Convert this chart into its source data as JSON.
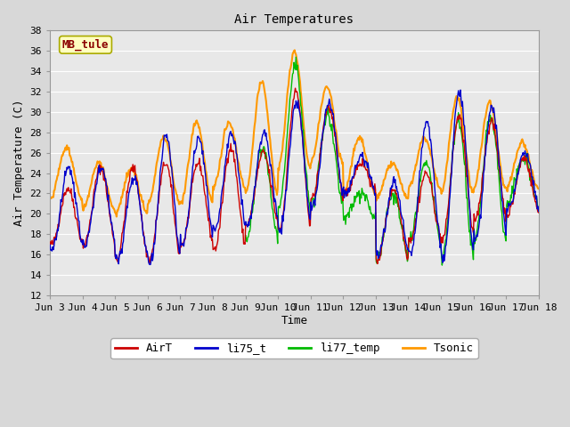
{
  "title": "Air Temperatures",
  "xlabel": "Time",
  "ylabel": "Air Temperature (C)",
  "ylim": [
    12,
    38
  ],
  "yticks": [
    12,
    14,
    16,
    18,
    20,
    22,
    24,
    26,
    28,
    30,
    32,
    34,
    36,
    38
  ],
  "annotation_text": "MB_tule",
  "annotation_color": "#8b0000",
  "annotation_bg": "#ffffc0",
  "series_colors": {
    "AirT": "#cc0000",
    "li75_t": "#0000cc",
    "li77_temp": "#00bb00",
    "Tsonic": "#ff9900"
  },
  "bg_color": "#e8e8e8",
  "plot_bg": "#e8e8e8",
  "x_start": 3.0,
  "x_end": 18.0,
  "xtick_days": [
    3,
    4,
    5,
    6,
    7,
    8,
    9,
    10,
    11,
    12,
    13,
    14,
    15,
    16,
    17,
    18
  ]
}
